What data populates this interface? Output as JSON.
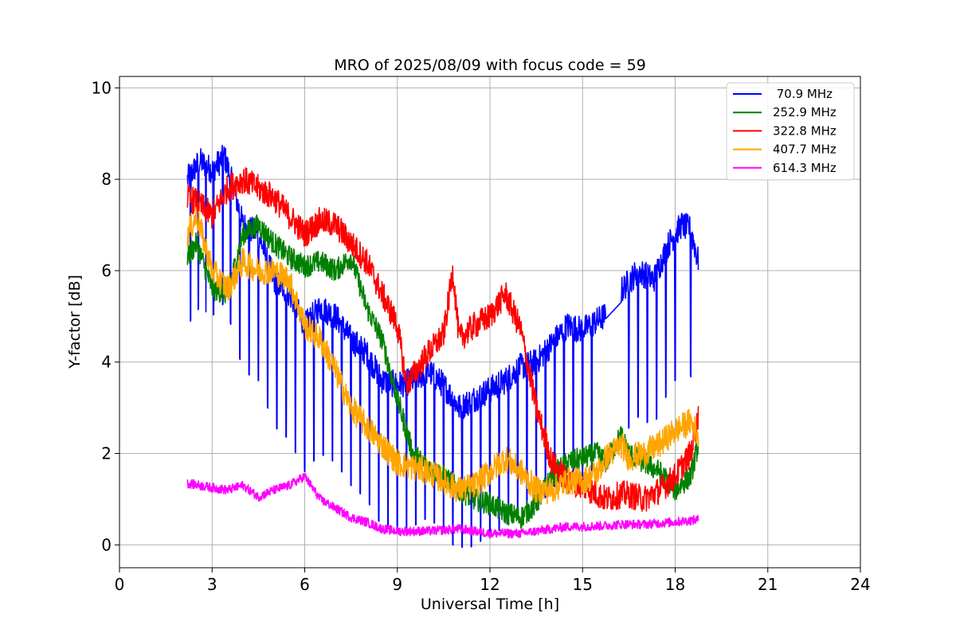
{
  "chart_data": {
    "type": "line",
    "title": "MRO of 2025/08/09 with focus code = 59",
    "xlabel": "Universal Time [h]",
    "ylabel": "Y-factor [dB]",
    "xlim": [
      0,
      24
    ],
    "ylim": [
      -0.5,
      10.25
    ],
    "xticks": [
      0,
      3,
      6,
      9,
      12,
      15,
      18,
      21,
      24
    ],
    "yticks": [
      0,
      2,
      4,
      6,
      8,
      10
    ],
    "grid": true,
    "legend_position": "top-right",
    "series": [
      {
        "name": " 70.9 MHz",
        "color": "#0000ff",
        "points": [
          [
            2.2,
            8.0
          ],
          [
            2.6,
            8.4
          ],
          [
            3.0,
            8.2
          ],
          [
            3.4,
            8.5
          ],
          [
            3.7,
            7.8
          ],
          [
            4.0,
            7.0
          ],
          [
            4.5,
            6.8
          ],
          [
            5.0,
            5.8
          ],
          [
            5.5,
            5.5
          ],
          [
            6.0,
            4.8
          ],
          [
            6.5,
            5.2
          ],
          [
            7.0,
            5.0
          ],
          [
            7.5,
            4.5
          ],
          [
            8.0,
            4.2
          ],
          [
            8.5,
            3.6
          ],
          [
            9.0,
            3.5
          ],
          [
            9.5,
            3.6
          ],
          [
            10.0,
            3.8
          ],
          [
            10.5,
            3.5
          ],
          [
            11.0,
            3.0
          ],
          [
            11.5,
            3.2
          ],
          [
            12.0,
            3.4
          ],
          [
            12.5,
            3.6
          ],
          [
            13.0,
            3.9
          ],
          [
            13.5,
            4.0
          ],
          [
            14.0,
            4.4
          ],
          [
            14.5,
            4.8
          ],
          [
            15.0,
            4.7
          ],
          [
            15.7,
            5.0
          ],
          [
            16.3,
            5.6
          ],
          [
            16.8,
            6.0
          ],
          [
            17.3,
            5.8
          ],
          [
            17.8,
            6.6
          ],
          [
            18.2,
            7.0
          ],
          [
            18.5,
            6.9
          ],
          [
            18.75,
            6.2
          ]
        ],
        "dips": [
          2.3,
          2.55,
          2.8,
          3.05,
          3.35,
          3.6,
          3.9,
          4.2,
          4.5,
          4.8,
          5.1,
          5.4,
          5.7,
          6.0,
          6.3,
          6.6,
          6.9,
          7.2,
          7.5,
          7.8,
          8.1,
          8.4,
          8.7,
          9.0,
          9.3,
          9.6,
          9.9,
          10.2,
          10.5,
          10.8,
          11.1,
          11.4,
          11.7,
          12.0,
          12.3,
          12.6,
          12.9,
          13.2,
          13.5,
          13.8,
          14.1,
          14.4,
          14.7,
          15.0,
          15.3,
          16.5,
          16.8,
          17.1,
          17.4,
          17.7,
          18.0,
          18.5
        ],
        "gaps": [
          [
            15.75,
            16.25
          ]
        ],
        "jitter": 0.3
      },
      {
        "name": "252.9 MHz",
        "color": "#008000",
        "points": [
          [
            2.2,
            6.3
          ],
          [
            2.5,
            6.6
          ],
          [
            3.0,
            5.6
          ],
          [
            3.5,
            5.5
          ],
          [
            4.0,
            6.8
          ],
          [
            4.5,
            7.0
          ],
          [
            5.0,
            6.6
          ],
          [
            5.5,
            6.3
          ],
          [
            6.0,
            6.1
          ],
          [
            6.5,
            6.2
          ],
          [
            7.0,
            6.0
          ],
          [
            7.5,
            6.3
          ],
          [
            8.0,
            5.2
          ],
          [
            8.5,
            4.5
          ],
          [
            9.0,
            3.2
          ],
          [
            9.5,
            2.0
          ],
          [
            10.0,
            1.7
          ],
          [
            10.5,
            1.5
          ],
          [
            11.0,
            1.2
          ],
          [
            11.5,
            1.0
          ],
          [
            12.0,
            0.9
          ],
          [
            12.5,
            0.7
          ],
          [
            13.0,
            0.6
          ],
          [
            13.5,
            0.9
          ],
          [
            14.0,
            1.5
          ],
          [
            14.5,
            1.8
          ],
          [
            15.0,
            1.9
          ],
          [
            15.5,
            2.0
          ],
          [
            15.75,
            1.8
          ],
          [
            16.25,
            2.4
          ],
          [
            16.5,
            2.0
          ],
          [
            17.0,
            1.8
          ],
          [
            17.5,
            1.6
          ],
          [
            18.0,
            1.2
          ],
          [
            18.5,
            1.5
          ],
          [
            18.75,
            2.2
          ]
        ],
        "dips": [],
        "gaps": [],
        "jitter": 0.25
      },
      {
        "name": "322.8 MHz",
        "color": "#ff0000",
        "points": [
          [
            2.2,
            7.6
          ],
          [
            2.5,
            7.5
          ],
          [
            3.0,
            7.2
          ],
          [
            3.5,
            7.8
          ],
          [
            4.0,
            8.0
          ],
          [
            4.5,
            7.8
          ],
          [
            5.0,
            7.6
          ],
          [
            5.5,
            7.2
          ],
          [
            6.0,
            6.8
          ],
          [
            6.5,
            7.1
          ],
          [
            7.0,
            7.0
          ],
          [
            7.5,
            6.6
          ],
          [
            8.0,
            6.2
          ],
          [
            8.5,
            5.5
          ],
          [
            9.0,
            4.8
          ],
          [
            9.3,
            3.5
          ],
          [
            9.6,
            3.8
          ],
          [
            10.0,
            4.2
          ],
          [
            10.5,
            4.6
          ],
          [
            10.8,
            6.0
          ],
          [
            11.0,
            4.5
          ],
          [
            11.5,
            4.8
          ],
          [
            12.0,
            5.0
          ],
          [
            12.5,
            5.5
          ],
          [
            13.0,
            4.7
          ],
          [
            13.5,
            3.0
          ],
          [
            14.0,
            1.8
          ],
          [
            14.5,
            1.4
          ],
          [
            15.0,
            1.3
          ],
          [
            15.5,
            1.1
          ],
          [
            15.75,
            1.0
          ],
          [
            16.25,
            1.1
          ],
          [
            16.5,
            1.1
          ],
          [
            17.0,
            1.0
          ],
          [
            17.5,
            1.2
          ],
          [
            18.0,
            1.5
          ],
          [
            18.5,
            2.0
          ],
          [
            18.75,
            2.8
          ]
        ],
        "dips": [],
        "gaps": [],
        "jitter": 0.3
      },
      {
        "name": "407.7 MHz",
        "color": "#ffa500",
        "points": [
          [
            2.2,
            6.8
          ],
          [
            2.5,
            7.2
          ],
          [
            3.0,
            6.0
          ],
          [
            3.5,
            5.6
          ],
          [
            4.0,
            6.2
          ],
          [
            4.5,
            6.0
          ],
          [
            5.0,
            6.0
          ],
          [
            5.5,
            5.8
          ],
          [
            6.0,
            4.8
          ],
          [
            6.5,
            4.5
          ],
          [
            7.0,
            3.8
          ],
          [
            7.5,
            3.0
          ],
          [
            8.0,
            2.6
          ],
          [
            8.5,
            2.2
          ],
          [
            9.0,
            1.8
          ],
          [
            9.5,
            1.7
          ],
          [
            10.0,
            1.6
          ],
          [
            10.5,
            1.4
          ],
          [
            11.0,
            1.2
          ],
          [
            11.5,
            1.3
          ],
          [
            12.0,
            1.6
          ],
          [
            12.5,
            1.9
          ],
          [
            13.0,
            1.6
          ],
          [
            13.5,
            1.2
          ],
          [
            14.0,
            1.2
          ],
          [
            14.5,
            1.4
          ],
          [
            15.0,
            1.4
          ],
          [
            15.5,
            1.6
          ],
          [
            15.75,
            1.9
          ],
          [
            16.25,
            2.2
          ],
          [
            16.5,
            1.9
          ],
          [
            17.0,
            2.0
          ],
          [
            17.5,
            2.2
          ],
          [
            18.0,
            2.5
          ],
          [
            18.5,
            2.7
          ],
          [
            18.75,
            2.4
          ]
        ],
        "dips": [],
        "gaps": [],
        "jitter": 0.3
      },
      {
        "name": "614.3 MHz",
        "color": "#ff00ff",
        "points": [
          [
            2.2,
            1.35
          ],
          [
            3.0,
            1.25
          ],
          [
            3.5,
            1.2
          ],
          [
            4.0,
            1.3
          ],
          [
            4.5,
            1.05
          ],
          [
            5.0,
            1.2
          ],
          [
            5.5,
            1.3
          ],
          [
            6.0,
            1.5
          ],
          [
            6.5,
            1.0
          ],
          [
            7.0,
            0.8
          ],
          [
            7.5,
            0.6
          ],
          [
            8.0,
            0.5
          ],
          [
            8.5,
            0.35
          ],
          [
            9.0,
            0.3
          ],
          [
            10.0,
            0.3
          ],
          [
            11.0,
            0.35
          ],
          [
            12.0,
            0.25
          ],
          [
            13.0,
            0.25
          ],
          [
            13.5,
            0.3
          ],
          [
            14.0,
            0.35
          ],
          [
            14.5,
            0.4
          ],
          [
            15.0,
            0.4
          ],
          [
            15.75,
            0.42
          ],
          [
            16.25,
            0.45
          ],
          [
            17.0,
            0.45
          ],
          [
            18.0,
            0.5
          ],
          [
            18.75,
            0.55
          ]
        ],
        "dips": [],
        "gaps": [],
        "jitter": 0.1
      }
    ]
  }
}
